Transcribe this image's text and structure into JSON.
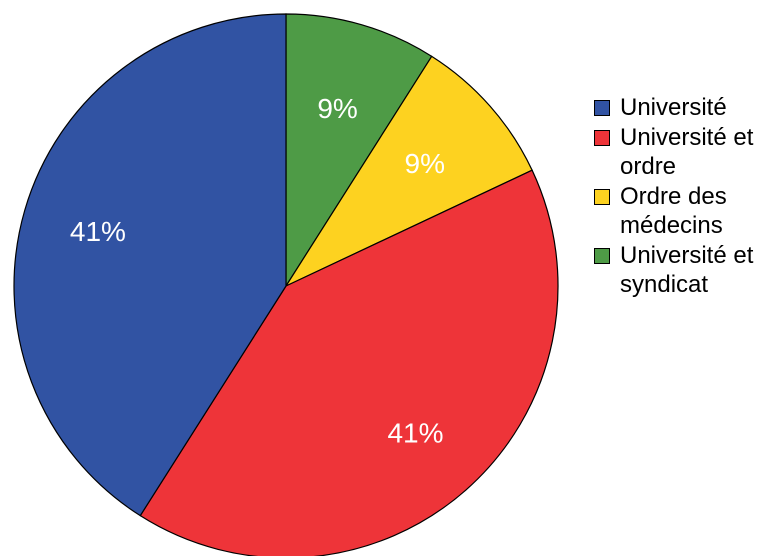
{
  "chart_data": {
    "type": "pie",
    "categories": [
      "Université",
      "Université et ordre",
      "Ordre des médecins",
      "Université et syndicat"
    ],
    "values": [
      41,
      41,
      9,
      9
    ],
    "labels": [
      "41%",
      "41%",
      "9%",
      "9%"
    ],
    "colors": [
      "#3153a3",
      "#ee3439",
      "#fdd220",
      "#4e9b46"
    ],
    "slice_order": [
      3,
      2,
      1,
      0
    ],
    "start_angle": "top",
    "direction": "clockwise",
    "title": "",
    "legend_position": "right",
    "legend": [
      {
        "label": "Université",
        "color": "#3153a3"
      },
      {
        "label": "Université et ordre",
        "color": "#ee3439"
      },
      {
        "label": "Ordre des médecins",
        "color": "#fdd220"
      },
      {
        "label": "Université et syndicat",
        "color": "#4e9b46"
      }
    ]
  }
}
